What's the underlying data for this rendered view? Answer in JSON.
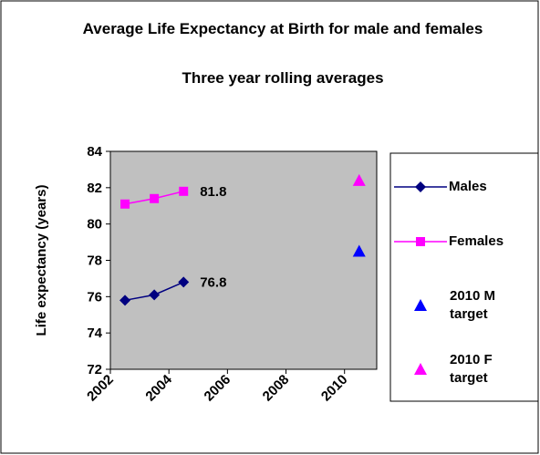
{
  "chart_data": {
    "type": "line",
    "title": "Average Life Expectancy at Birth for male and females",
    "subtitle": "Three year rolling averages",
    "y_label": "Life expectancy (years)",
    "xlim": [
      2002,
      2011.1
    ],
    "xticks": [
      2002,
      2004,
      2006,
      2008,
      2010
    ],
    "ylim": [
      72,
      84
    ],
    "yticks": [
      72,
      74,
      76,
      78,
      80,
      82,
      84
    ],
    "grid": false,
    "legend": "right",
    "data_labels": "last",
    "series": [
      {
        "name": "Males",
        "color": "#000080",
        "marker": "diamond",
        "line": true,
        "x": [
          2002.5,
          2003.5,
          2004.5
        ],
        "values": [
          75.8,
          76.1,
          76.8
        ]
      },
      {
        "name": "Females",
        "color": "#ff00ff",
        "marker": "square",
        "line": true,
        "x": [
          2002.5,
          2003.5,
          2004.5
        ],
        "values": [
          81.1,
          81.4,
          81.8
        ]
      },
      {
        "name": "2010 M target",
        "color": "#0000ff",
        "marker": "triangle",
        "line": false,
        "x": [
          2010.5
        ],
        "values": [
          78.5
        ]
      },
      {
        "name": "2010 F target",
        "color": "#ff00ff",
        "marker": "triangle",
        "line": false,
        "x": [
          2010.5
        ],
        "values": [
          82.4
        ]
      }
    ]
  }
}
